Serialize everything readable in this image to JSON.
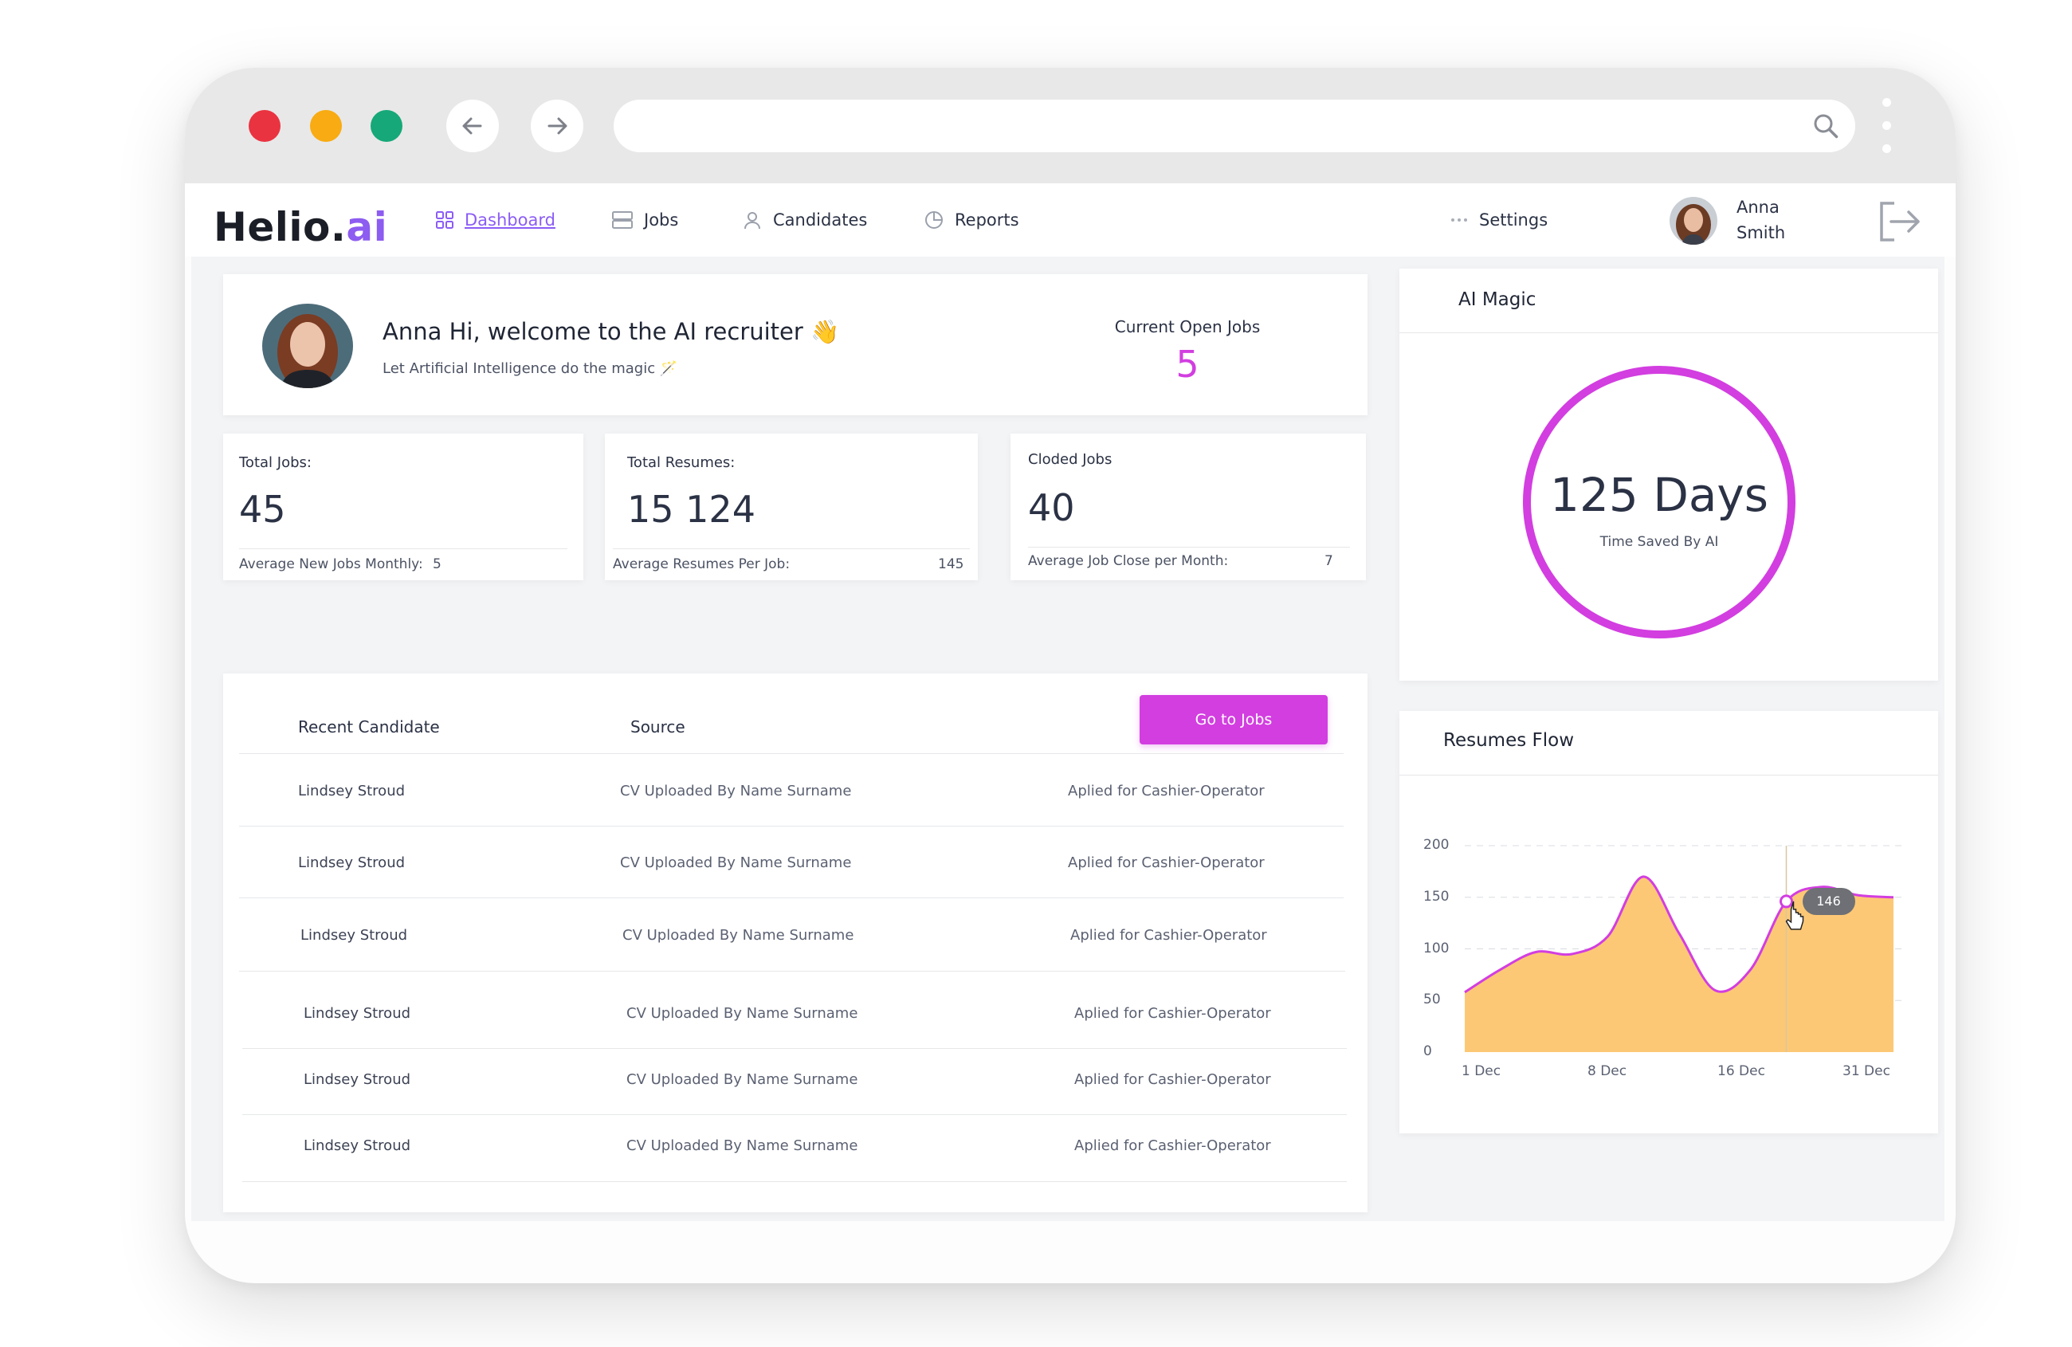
{
  "app": {
    "logo_main": "Helio.",
    "logo_ai": "ai"
  },
  "nav": {
    "items": [
      {
        "label": "Dashboard",
        "icon": "grid-icon"
      },
      {
        "label": "Jobs",
        "icon": "list-icon"
      },
      {
        "label": "Candidates",
        "icon": "user-icon"
      },
      {
        "label": "Reports",
        "icon": "pie-chart-icon"
      }
    ],
    "settings_label": "Settings",
    "user": {
      "first": "Anna",
      "last": "Smith"
    }
  },
  "welcome": {
    "title": "Anna Hi, welcome to the AI recruiter 👋",
    "subtitle": "Let Artificial Intelligence do the magic 🪄",
    "open_jobs_label": "Current Open Jobs",
    "open_jobs_value": "5"
  },
  "stats": [
    {
      "label": "Total Jobs:",
      "value": "45",
      "foot_label": "Average New Jobs Monthly:",
      "foot_value": "5"
    },
    {
      "label": "Total Resumes:",
      "value": "15 124",
      "foot_label": "Average Resumes Per Job:",
      "foot_value": "145"
    },
    {
      "label": "Cloded Jobs",
      "value": "40",
      "foot_label": "Average Job Close per Month:",
      "foot_value": "7"
    }
  ],
  "candidates": {
    "header_candidate": "Recent Candidate",
    "header_source": "Source",
    "go_button": "Go to Jobs",
    "rows": [
      {
        "name": "Lindsey Stroud",
        "source": "CV Uploaded By Name Surname",
        "applied": "Aplied for Cashier-Operator"
      },
      {
        "name": "Lindsey Stroud",
        "source": "CV Uploaded By Name Surname",
        "applied": "Aplied for Cashier-Operator"
      },
      {
        "name": "Lindsey Stroud",
        "source": "CV Uploaded By Name Surname",
        "applied": "Aplied for Cashier-Operator"
      },
      {
        "name": "Lindsey Stroud",
        "source": "CV Uploaded By Name Surname",
        "applied": "Aplied for Cashier-Operator"
      },
      {
        "name": "Lindsey Stroud",
        "source": "CV Uploaded By Name Surname",
        "applied": "Aplied for Cashier-Operator"
      },
      {
        "name": "Lindsey Stroud",
        "source": "CV Uploaded By Name Surname",
        "applied": "Aplied for Cashier-Operator"
      }
    ]
  },
  "ai_magic": {
    "title": "AI Magic",
    "value": "125 Days",
    "caption": "Time Saved By AI"
  },
  "resumes_flow": {
    "title": "Resumes Flow",
    "tooltip": "146"
  },
  "chart_data": {
    "type": "area",
    "title": "Resumes Flow",
    "x_ticks": [
      "1 Dec",
      "8 Dec",
      "16 Dec",
      "31 Dec"
    ],
    "y_ticks": [
      0,
      50,
      100,
      150,
      200
    ],
    "ylim": [
      0,
      200
    ],
    "grid": "horizontal dashed",
    "series": [
      {
        "values": [
          58,
          80,
          97,
          95,
          112,
          170,
          115,
          60,
          80,
          146,
          160,
          152,
          150
        ]
      }
    ],
    "highlight": {
      "value": 146
    },
    "colors": {
      "fill": "#fdc876",
      "line": "#d23ee0"
    }
  },
  "colors": {
    "accent": "#d23ee0",
    "nav_active": "#8b5cf6",
    "dot_red": "#ea3340",
    "dot_yellow": "#f8ab12",
    "dot_green": "#16a878"
  }
}
